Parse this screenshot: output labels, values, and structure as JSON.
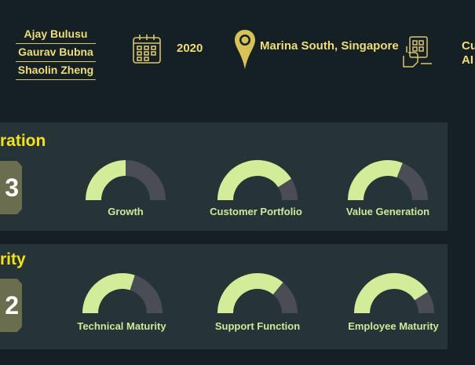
{
  "header": {
    "authors": [
      "Ajay Bulusu",
      "Gaurav Bubna",
      "Shaolin Zheng"
    ],
    "year": "2020",
    "location": "Marina South, Singapore",
    "cut_text_line1": "Cu",
    "cut_text_line2": "AI",
    "icons": [
      "calendar-icon",
      "location-pin-icon",
      "technology-hand-icon"
    ]
  },
  "panels": [
    {
      "title": "ration",
      "score": "3",
      "gauges": [
        {
          "label": "Growth",
          "fraction": 0.5
        },
        {
          "label": "Customer Portfolio",
          "fraction": 0.82
        },
        {
          "label": "Value Generation",
          "fraction": 0.62
        }
      ]
    },
    {
      "title": "rity",
      "score": "2",
      "gauges": [
        {
          "label": "Technical Maturity",
          "fraction": 0.6
        },
        {
          "label": "Support Function",
          "fraction": 0.72
        },
        {
          "label": "Employee Maturity",
          "fraction": 0.82
        }
      ]
    }
  ],
  "colors": {
    "background": "#142024",
    "panel": "#263438",
    "accent_yellow": "#f4e21c",
    "header_text": "#f0dc7a",
    "gauge_fill": "#d3ec9a",
    "gauge_track": "#4a4d53",
    "score_box": "#6b6d4f"
  }
}
